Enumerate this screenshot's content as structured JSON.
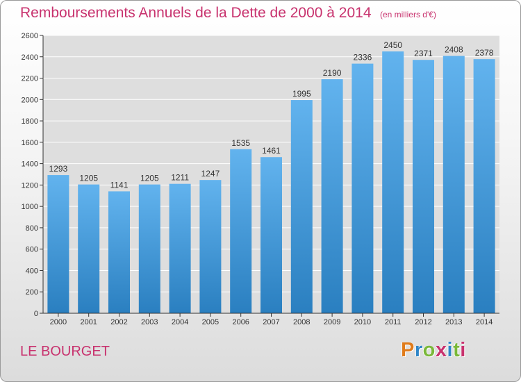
{
  "header": {
    "title": "Remboursements Annuels de la Dette de 2000 à 2014",
    "unit": "(en milliers d'€)"
  },
  "footer": {
    "place": "LE BOURGET",
    "brand": "Proxiti",
    "brand_letter_colors": [
      "#e07b1a",
      "#2f86c8",
      "#7ab83a",
      "#c8326e",
      "#2f86c8",
      "#7ab83a",
      "#c8326e"
    ]
  },
  "chart_data": {
    "type": "bar",
    "title": "Remboursements Annuels de la Dette de 2000 à 2014",
    "subtitle": "(en milliers d'€)",
    "xlabel": "",
    "ylabel": "",
    "categories": [
      "2000",
      "2001",
      "2002",
      "2003",
      "2004",
      "2005",
      "2006",
      "2007",
      "2008",
      "2009",
      "2010",
      "2011",
      "2012",
      "2013",
      "2014"
    ],
    "values": [
      1293,
      1205,
      1141,
      1205,
      1211,
      1247,
      1535,
      1461,
      1995,
      2190,
      2336,
      2450,
      2371,
      2408,
      2378
    ],
    "ylim": [
      0,
      2600
    ],
    "yticks": [
      0,
      200,
      400,
      600,
      800,
      1000,
      1200,
      1400,
      1600,
      1800,
      2000,
      2200,
      2400,
      2600
    ],
    "grid": true,
    "legend": "none",
    "colors": {
      "bar_top": "#62b3ee",
      "bar_bottom": "#2a7fc0",
      "grid": "#ffffff",
      "plot_bg": "#dedede",
      "axis": "#333333"
    }
  }
}
